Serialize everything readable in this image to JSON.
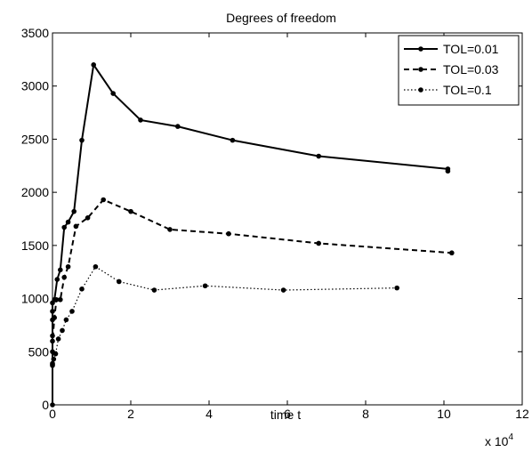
{
  "chart_data": {
    "type": "line",
    "title": "Degrees of freedom",
    "xlabel": "time t",
    "ylabel": "",
    "x_multiplier_label": "x 10",
    "x_multiplier_exponent": "4",
    "xlim": [
      0,
      120000
    ],
    "ylim": [
      0,
      3500
    ],
    "xticks": [
      0,
      20000,
      40000,
      60000,
      80000,
      100000,
      120000
    ],
    "xtick_labels": [
      "0",
      "2",
      "4",
      "6",
      "8",
      "10",
      "12"
    ],
    "yticks": [
      0,
      500,
      1000,
      1500,
      2000,
      2500,
      3000,
      3500
    ],
    "ytick_labels": [
      "0",
      "500",
      "1000",
      "1500",
      "2000",
      "2500",
      "3000",
      "3500"
    ],
    "grid": false,
    "legend_position": "top-right",
    "series": [
      {
        "name": "TOL=0.01",
        "line_style": "solid",
        "points": [
          [
            0,
            0
          ],
          [
            0,
            370
          ],
          [
            0,
            500
          ],
          [
            0,
            650
          ],
          [
            0,
            800
          ],
          [
            0,
            880
          ],
          [
            0,
            960
          ],
          [
            500,
            990
          ],
          [
            1200,
            1180
          ],
          [
            2000,
            1270
          ],
          [
            3000,
            1670
          ],
          [
            4000,
            1720
          ],
          [
            5500,
            1820
          ],
          [
            7500,
            2490
          ],
          [
            10500,
            3200
          ],
          [
            15500,
            2930
          ],
          [
            22500,
            2680
          ],
          [
            32000,
            2620
          ],
          [
            46000,
            2490
          ],
          [
            68000,
            2340
          ],
          [
            101000,
            2220
          ],
          [
            101000,
            2200
          ]
        ]
      },
      {
        "name": "TOL=0.03",
        "line_style": "dashed",
        "points": [
          [
            0,
            380
          ],
          [
            0,
            600
          ],
          [
            500,
            820
          ],
          [
            1000,
            990
          ],
          [
            2000,
            990
          ],
          [
            3000,
            1200
          ],
          [
            4000,
            1300
          ],
          [
            6000,
            1680
          ],
          [
            9000,
            1760
          ],
          [
            13000,
            1930
          ],
          [
            20000,
            1820
          ],
          [
            30000,
            1650
          ],
          [
            45000,
            1610
          ],
          [
            68000,
            1520
          ],
          [
            102000,
            1430
          ]
        ]
      },
      {
        "name": "TOL=0.1",
        "line_style": "dotted",
        "points": [
          [
            0,
            390
          ],
          [
            300,
            430
          ],
          [
            800,
            480
          ],
          [
            1500,
            620
          ],
          [
            2500,
            700
          ],
          [
            3500,
            800
          ],
          [
            5000,
            880
          ],
          [
            7500,
            1090
          ],
          [
            11000,
            1300
          ],
          [
            17000,
            1160
          ],
          [
            26000,
            1080
          ],
          [
            39000,
            1120
          ],
          [
            59000,
            1080
          ],
          [
            88000,
            1100
          ]
        ]
      }
    ]
  }
}
